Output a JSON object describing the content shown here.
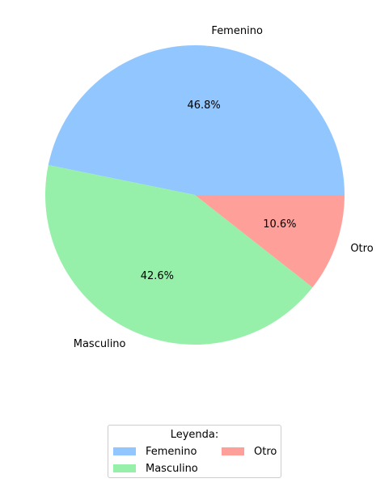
{
  "chart_data": {
    "type": "pie",
    "categories": [
      "Femenino",
      "Masculino",
      "Otro"
    ],
    "values": [
      46.8,
      42.6,
      10.6
    ],
    "percent_labels": [
      "46.8%",
      "42.6%",
      "10.6%"
    ],
    "colors": [
      "#92c6ff",
      "#97f0aa",
      "#ff9f9a"
    ],
    "start_angle_deg": 0,
    "direction": "counterclockwise",
    "legend": {
      "title": "Leyenda:",
      "placement": "bottom-center",
      "columns": 2,
      "entries": [
        "Femenino",
        "Masculino",
        "Otro"
      ]
    }
  }
}
